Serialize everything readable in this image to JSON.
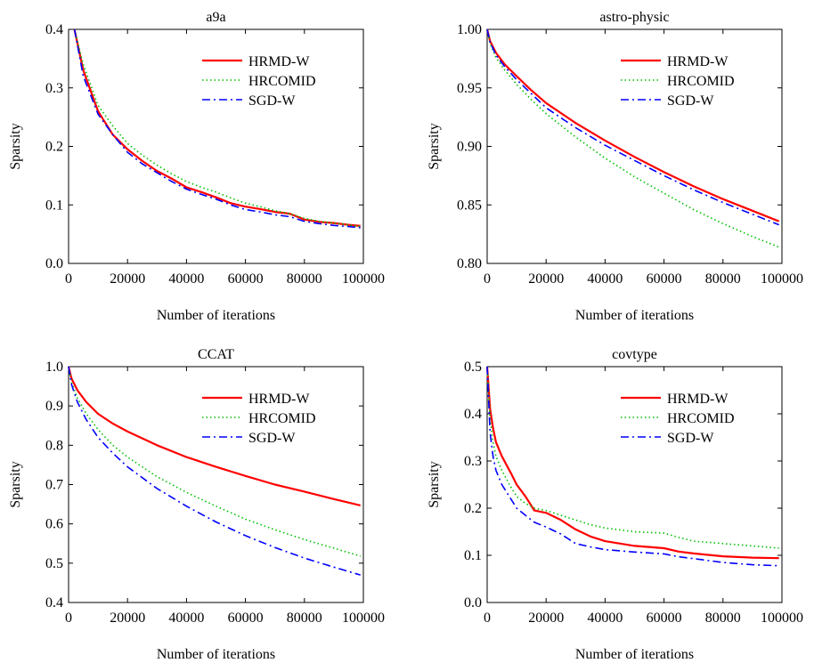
{
  "chart_data": [
    {
      "type": "line",
      "title": "a9a",
      "xlabel": "Number of iterations",
      "ylabel": "Sparsity",
      "xlim": [
        0,
        100000
      ],
      "ylim": [
        0.0,
        0.4
      ],
      "xticks": [
        "0",
        "20000",
        "40000",
        "60000",
        "80000",
        "100000"
      ],
      "yticks": [
        "0.0",
        "0.1",
        "0.2",
        "0.3",
        "0.4"
      ],
      "xtick_values": [
        0,
        20000,
        40000,
        60000,
        80000,
        100000
      ],
      "ytick_values": [
        0.0,
        0.1,
        0.2,
        0.3,
        0.4
      ],
      "legend_position": "top-right",
      "series": [
        {
          "name": "HRMD-W",
          "color": "#ff0000",
          "dash": "solid",
          "x": [
            2000,
            5000,
            10000,
            15000,
            20000,
            25000,
            30000,
            35000,
            40000,
            45000,
            50000,
            55000,
            60000,
            65000,
            70000,
            75000,
            80000,
            85000,
            90000,
            95000,
            99000
          ],
          "y": [
            0.4,
            0.33,
            0.26,
            0.22,
            0.195,
            0.175,
            0.158,
            0.145,
            0.13,
            0.122,
            0.113,
            0.103,
            0.097,
            0.093,
            0.088,
            0.085,
            0.075,
            0.071,
            0.069,
            0.066,
            0.064
          ]
        },
        {
          "name": "HRCOMID",
          "color": "#00c000",
          "dash": "dotted",
          "x": [
            2000,
            5000,
            10000,
            15000,
            20000,
            25000,
            30000,
            35000,
            40000,
            45000,
            50000,
            55000,
            60000,
            65000,
            70000,
            75000,
            80000,
            85000,
            90000,
            95000,
            99000
          ],
          "y": [
            0.4,
            0.34,
            0.27,
            0.235,
            0.205,
            0.185,
            0.168,
            0.153,
            0.14,
            0.13,
            0.122,
            0.112,
            0.103,
            0.097,
            0.09,
            0.085,
            0.077,
            0.072,
            0.069,
            0.066,
            0.063
          ]
        },
        {
          "name": "SGD-W",
          "color": "#0000ff",
          "dash": "dashdot",
          "x": [
            2000,
            5000,
            10000,
            15000,
            20000,
            25000,
            30000,
            35000,
            40000,
            45000,
            50000,
            55000,
            60000,
            65000,
            70000,
            75000,
            80000,
            85000,
            90000,
            95000,
            99000
          ],
          "y": [
            0.4,
            0.32,
            0.255,
            0.22,
            0.19,
            0.17,
            0.155,
            0.14,
            0.127,
            0.118,
            0.11,
            0.1,
            0.092,
            0.088,
            0.083,
            0.08,
            0.072,
            0.068,
            0.065,
            0.063,
            0.061
          ]
        }
      ]
    },
    {
      "type": "line",
      "title": "astro-physic",
      "xlabel": "Number of iterations",
      "ylabel": "Sparsity",
      "xlim": [
        0,
        100000
      ],
      "ylim": [
        0.8,
        1.0
      ],
      "xticks": [
        "0",
        "20000",
        "40000",
        "60000",
        "80000",
        "100000"
      ],
      "yticks": [
        "0.80",
        "0.85",
        "0.90",
        "0.95",
        "1.00"
      ],
      "xtick_values": [
        0,
        20000,
        40000,
        60000,
        80000,
        100000
      ],
      "ytick_values": [
        0.8,
        0.85,
        0.9,
        0.95,
        1.0
      ],
      "legend_position": "top-right",
      "series": [
        {
          "name": "HRMD-W",
          "color": "#ff0000",
          "dash": "solid",
          "x": [
            0,
            1000,
            3000,
            6000,
            10000,
            15000,
            20000,
            30000,
            40000,
            50000,
            60000,
            70000,
            80000,
            90000,
            99000
          ],
          "y": [
            1.0,
            0.99,
            0.98,
            0.97,
            0.96,
            0.948,
            0.937,
            0.92,
            0.905,
            0.891,
            0.878,
            0.866,
            0.855,
            0.845,
            0.836
          ]
        },
        {
          "name": "HRCOMID",
          "color": "#00c000",
          "dash": "dotted",
          "x": [
            0,
            1000,
            3000,
            6000,
            10000,
            15000,
            20000,
            30000,
            40000,
            50000,
            60000,
            70000,
            80000,
            90000,
            99000
          ],
          "y": [
            1.0,
            0.988,
            0.976,
            0.965,
            0.953,
            0.94,
            0.928,
            0.908,
            0.89,
            0.874,
            0.86,
            0.846,
            0.834,
            0.823,
            0.814
          ]
        },
        {
          "name": "SGD-W",
          "color": "#0000ff",
          "dash": "dashdot",
          "x": [
            0,
            1000,
            3000,
            6000,
            10000,
            15000,
            20000,
            30000,
            40000,
            50000,
            60000,
            70000,
            80000,
            90000,
            99000
          ],
          "y": [
            1.0,
            0.989,
            0.978,
            0.968,
            0.957,
            0.945,
            0.933,
            0.916,
            0.901,
            0.888,
            0.875,
            0.863,
            0.852,
            0.842,
            0.833
          ]
        }
      ]
    },
    {
      "type": "line",
      "title": "CCAT",
      "xlabel": "Number of iterations",
      "ylabel": "Sparsity",
      "xlim": [
        0,
        100000
      ],
      "ylim": [
        0.4,
        1.0
      ],
      "xticks": [
        "0",
        "20000",
        "40000",
        "60000",
        "80000",
        "100000"
      ],
      "yticks": [
        "0.4",
        "0.5",
        "0.6",
        "0.7",
        "0.8",
        "0.9",
        "1.0"
      ],
      "xtick_values": [
        0,
        20000,
        40000,
        60000,
        80000,
        100000
      ],
      "ytick_values": [
        0.4,
        0.5,
        0.6,
        0.7,
        0.8,
        0.9,
        1.0
      ],
      "legend_position": "top-right",
      "series": [
        {
          "name": "HRMD-W",
          "color": "#ff0000",
          "dash": "solid",
          "x": [
            0,
            1000,
            3000,
            6000,
            10000,
            15000,
            20000,
            30000,
            40000,
            50000,
            60000,
            70000,
            80000,
            90000,
            99000
          ],
          "y": [
            1.0,
            0.97,
            0.94,
            0.91,
            0.88,
            0.855,
            0.835,
            0.8,
            0.77,
            0.745,
            0.722,
            0.7,
            0.682,
            0.663,
            0.647
          ]
        },
        {
          "name": "HRCOMID",
          "color": "#00c000",
          "dash": "dotted",
          "x": [
            0,
            1000,
            3000,
            6000,
            10000,
            15000,
            20000,
            30000,
            40000,
            50000,
            60000,
            70000,
            80000,
            90000,
            99000
          ],
          "y": [
            1.0,
            0.96,
            0.92,
            0.88,
            0.84,
            0.8,
            0.77,
            0.72,
            0.68,
            0.645,
            0.612,
            0.585,
            0.56,
            0.538,
            0.518
          ]
        },
        {
          "name": "SGD-W",
          "color": "#0000ff",
          "dash": "dashdot",
          "x": [
            0,
            1000,
            3000,
            6000,
            10000,
            15000,
            20000,
            30000,
            40000,
            50000,
            60000,
            70000,
            80000,
            90000,
            99000
          ],
          "y": [
            1.0,
            0.955,
            0.91,
            0.865,
            0.82,
            0.78,
            0.745,
            0.69,
            0.645,
            0.605,
            0.57,
            0.54,
            0.513,
            0.49,
            0.47
          ]
        }
      ]
    },
    {
      "type": "line",
      "title": "covtype",
      "xlabel": "Number of iterations",
      "ylabel": "Sparsity",
      "xlim": [
        0,
        100000
      ],
      "ylim": [
        0.0,
        0.5
      ],
      "xticks": [
        "0",
        "20000",
        "40000",
        "60000",
        "80000",
        "100000"
      ],
      "yticks": [
        "0.0",
        "0.1",
        "0.2",
        "0.3",
        "0.4",
        "0.5"
      ],
      "xtick_values": [
        0,
        20000,
        40000,
        60000,
        80000,
        100000
      ],
      "ytick_values": [
        0.0,
        0.1,
        0.2,
        0.3,
        0.4,
        0.5
      ],
      "legend_position": "top-right",
      "series": [
        {
          "name": "HRMD-W",
          "color": "#ff0000",
          "dash": "solid",
          "x": [
            0,
            1000,
            2000,
            3000,
            5000,
            8000,
            10000,
            13000,
            16000,
            20000,
            25000,
            30000,
            35000,
            40000,
            50000,
            60000,
            65000,
            70000,
            80000,
            90000,
            99000
          ],
          "y": [
            0.5,
            0.41,
            0.37,
            0.34,
            0.31,
            0.275,
            0.25,
            0.225,
            0.195,
            0.19,
            0.175,
            0.155,
            0.14,
            0.13,
            0.12,
            0.115,
            0.108,
            0.104,
            0.098,
            0.095,
            0.094
          ]
        },
        {
          "name": "HRCOMID",
          "color": "#00c000",
          "dash": "dotted",
          "x": [
            0,
            1000,
            2000,
            3000,
            5000,
            8000,
            10000,
            13000,
            16000,
            20000,
            25000,
            30000,
            35000,
            40000,
            50000,
            60000,
            65000,
            70000,
            80000,
            90000,
            99000
          ],
          "y": [
            0.5,
            0.39,
            0.34,
            0.31,
            0.28,
            0.245,
            0.225,
            0.21,
            0.2,
            0.195,
            0.185,
            0.175,
            0.165,
            0.158,
            0.15,
            0.147,
            0.138,
            0.13,
            0.125,
            0.12,
            0.115
          ]
        },
        {
          "name": "SGD-W",
          "color": "#0000ff",
          "dash": "dashdot",
          "x": [
            0,
            1000,
            2000,
            3000,
            5000,
            8000,
            10000,
            13000,
            16000,
            20000,
            25000,
            30000,
            35000,
            40000,
            50000,
            60000,
            65000,
            70000,
            80000,
            90000,
            99000
          ],
          "y": [
            0.5,
            0.36,
            0.31,
            0.28,
            0.25,
            0.22,
            0.2,
            0.185,
            0.17,
            0.16,
            0.145,
            0.125,
            0.118,
            0.112,
            0.107,
            0.103,
            0.097,
            0.093,
            0.085,
            0.08,
            0.078
          ]
        }
      ]
    }
  ]
}
